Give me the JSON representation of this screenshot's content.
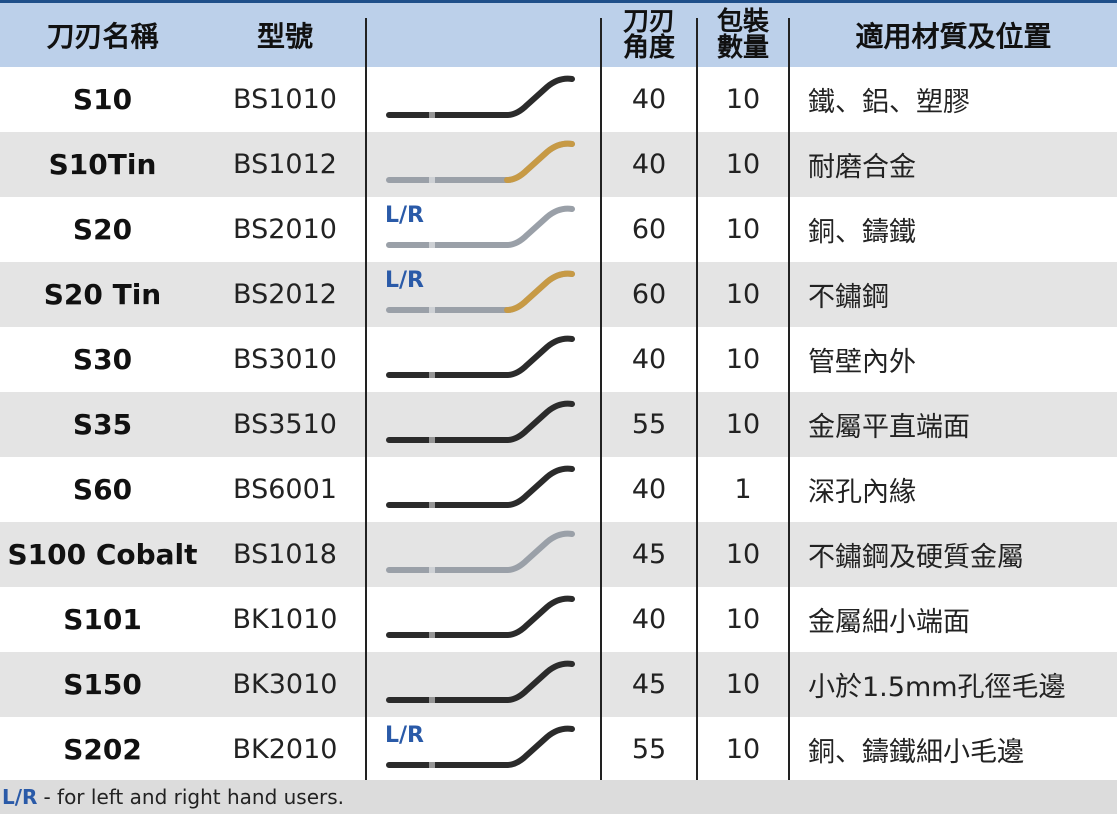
{
  "header": {
    "name": "刀刃名稱",
    "model": "型號",
    "angle_line1": "刀刃",
    "angle_line2": "角度",
    "pack_line1": "包裝",
    "pack_line2": "數量",
    "material": "適用材質及位置"
  },
  "rows": [
    {
      "name": "S10",
      "model": "BS1010",
      "lr": "",
      "blade": "steel",
      "angle": "40",
      "pack": "10",
      "material": "鐵、鋁、塑膠"
    },
    {
      "name": "S10Tin",
      "model": "BS1012",
      "lr": "",
      "blade": "gold",
      "angle": "40",
      "pack": "10",
      "material": "耐磨合金"
    },
    {
      "name": "S20",
      "model": "BS2010",
      "lr": "L/R",
      "blade": "silver",
      "angle": "60",
      "pack": "10",
      "material": "銅、鑄鐵"
    },
    {
      "name": "S20 Tin",
      "model": "BS2012",
      "lr": "L/R",
      "blade": "gold",
      "angle": "60",
      "pack": "10",
      "material": "不鏽鋼"
    },
    {
      "name": "S30",
      "model": "BS3010",
      "lr": "",
      "blade": "steel",
      "angle": "40",
      "pack": "10",
      "material": "管壁內外"
    },
    {
      "name": "S35",
      "model": "BS3510",
      "lr": "",
      "blade": "steel",
      "angle": "55",
      "pack": "10",
      "material": "金屬平直端面"
    },
    {
      "name": "S60",
      "model": "BS6001",
      "lr": "",
      "blade": "steel",
      "angle": "40",
      "pack": "1",
      "material": "深孔內緣"
    },
    {
      "name": "S100 Cobalt",
      "model": "BS1018",
      "lr": "",
      "blade": "silver",
      "angle": "45",
      "pack": "10",
      "material": "不鏽鋼及硬質金屬"
    },
    {
      "name": "S101",
      "model": "BK1010",
      "lr": "",
      "blade": "steel",
      "angle": "40",
      "pack": "10",
      "material": "金屬細小端面"
    },
    {
      "name": "S150",
      "model": "BK3010",
      "lr": "",
      "blade": "steel",
      "angle": "45",
      "pack": "10",
      "material": "小於1.5mm孔徑毛邊"
    },
    {
      "name": "S202",
      "model": "BK2010",
      "lr": "L/R",
      "blade": "steel",
      "angle": "55",
      "pack": "10",
      "material": "銅、鑄鐵細小毛邊"
    }
  ],
  "footer": {
    "lr_label": "L/R",
    "note": "- for left and right hand users."
  },
  "colors": {
    "header_bg": "#bcd0ea",
    "row_shade": "#e4e4e4",
    "lr_blue": "#2a5aa8",
    "steel": "#2b2b2b",
    "silver": "#9aa0a8",
    "gold": "#c79a45"
  }
}
